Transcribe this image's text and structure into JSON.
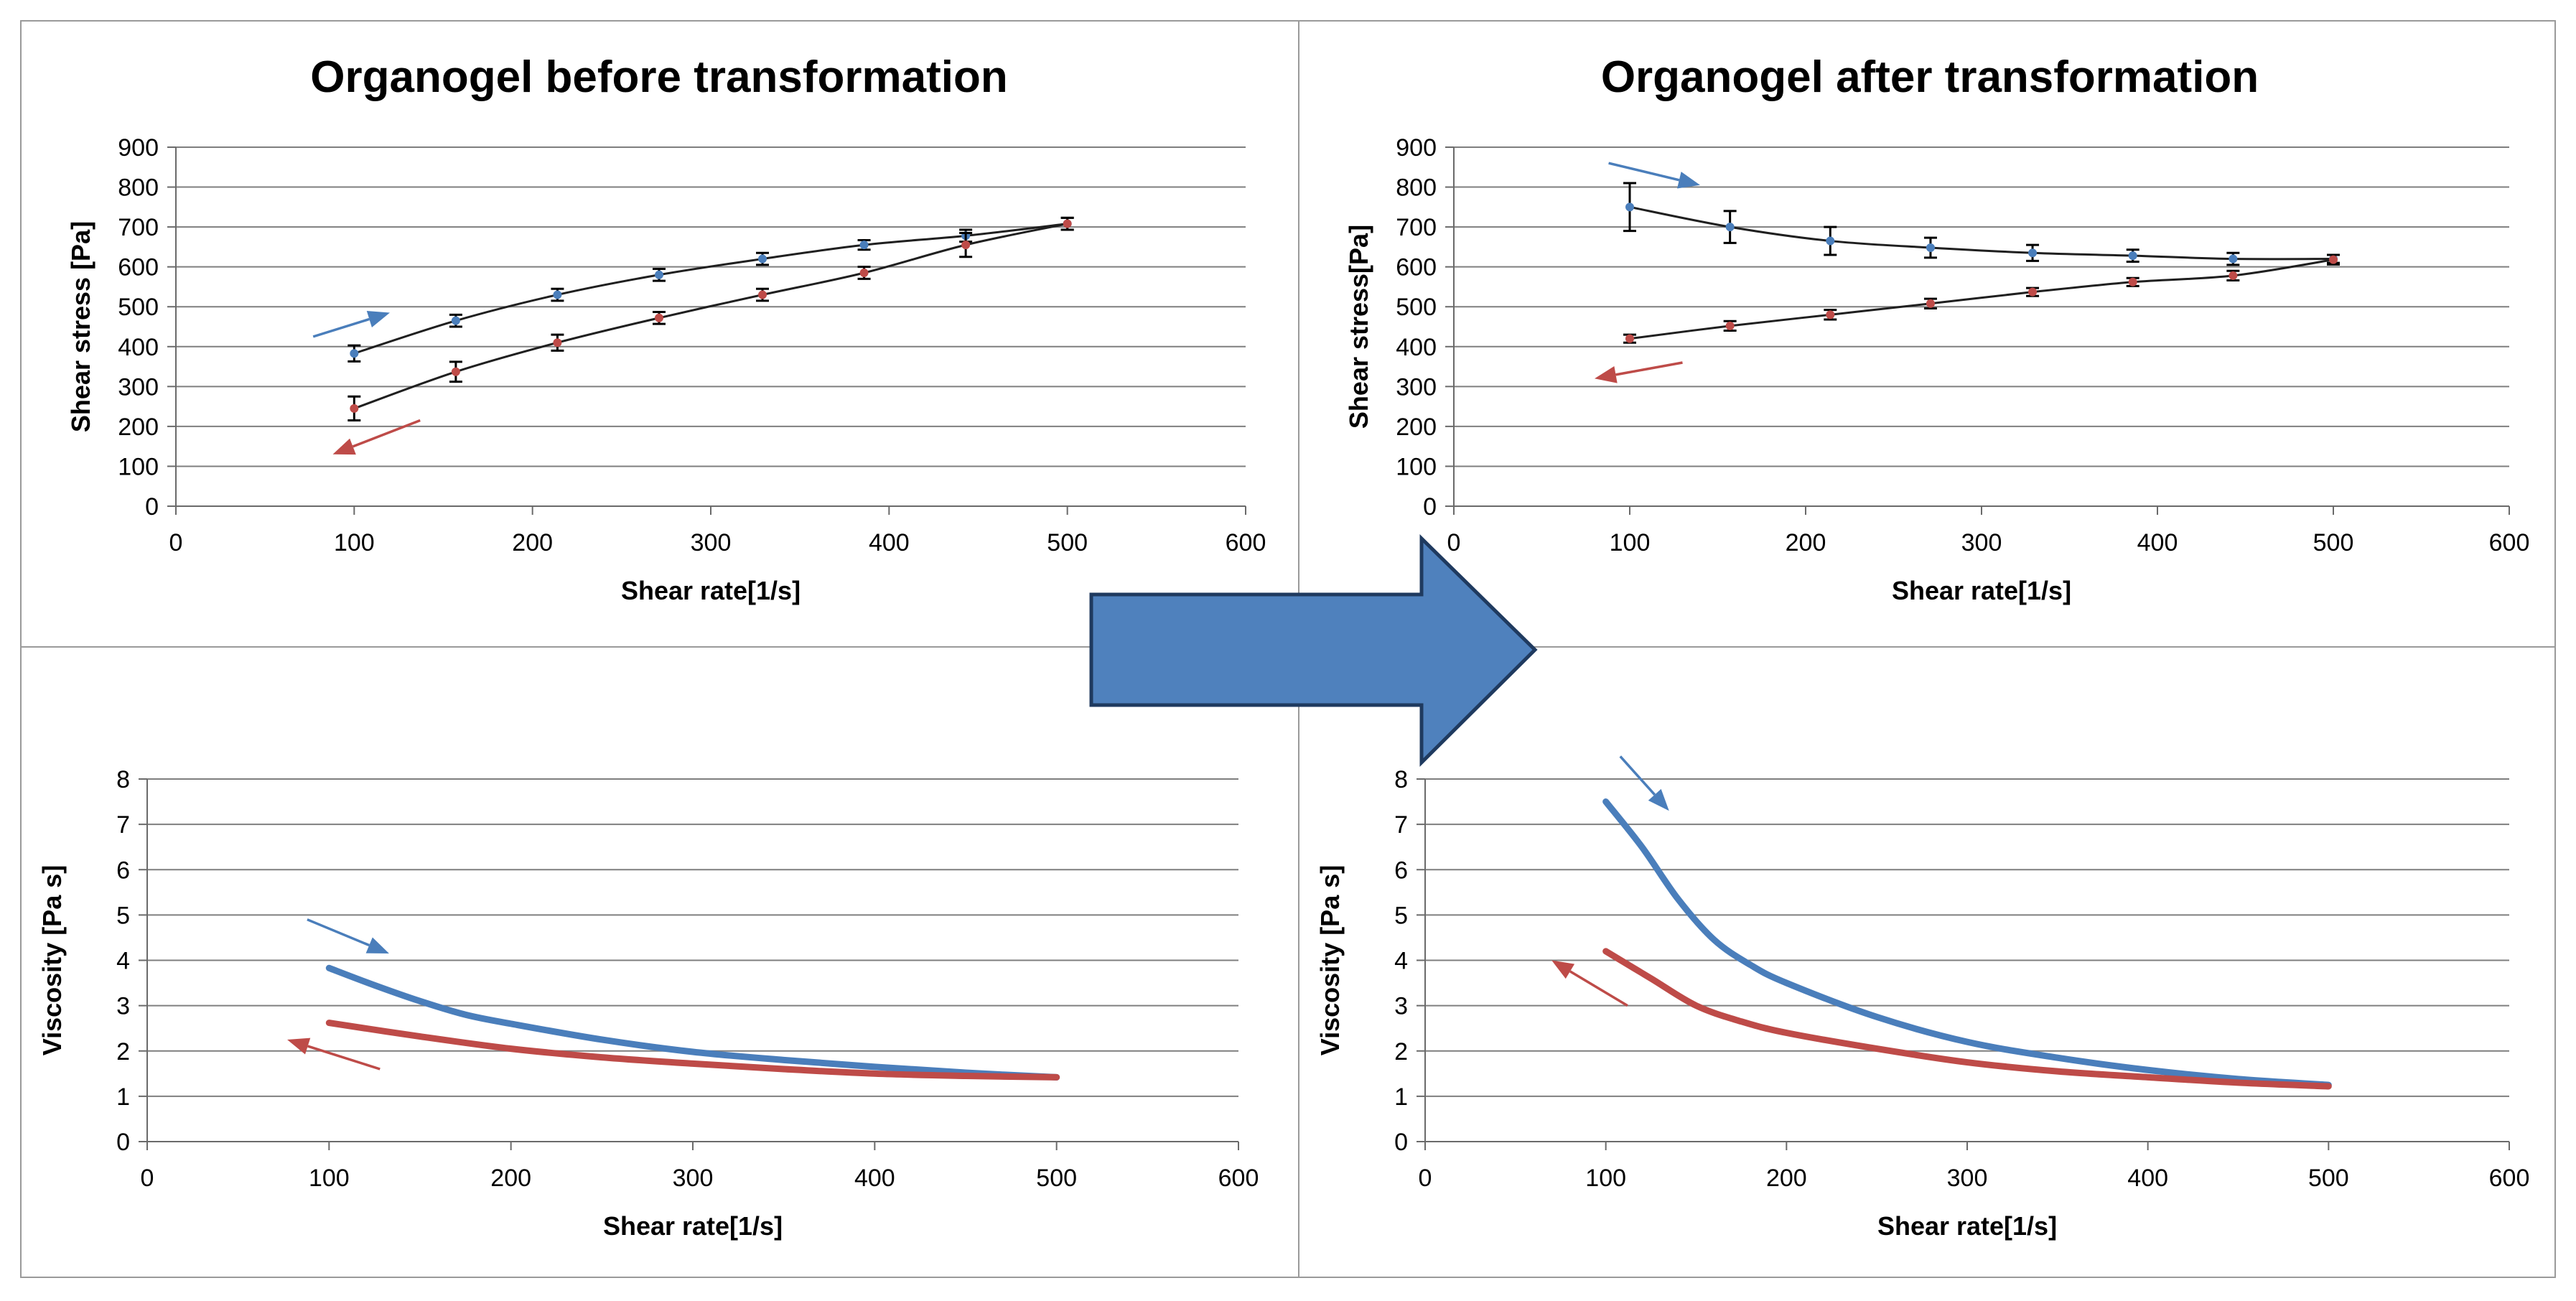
{
  "titles": {
    "before": "Organogel before transformation",
    "after": "Organogel after transformation"
  },
  "colors": {
    "up": "#4a7ebb",
    "down": "#be4b48",
    "fit": "#1f1f1f",
    "grid": "#7f7f7f",
    "arrow_fill": "#4f81bd",
    "arrow_stroke": "#1f3a5f"
  },
  "chart_data": [
    {
      "id": "stress-before",
      "type": "scatter",
      "title": "Organogel before transformation",
      "xlabel": "Shear rate[1/s]",
      "ylabel": "Shear stress [Pa]",
      "xlim": [
        0,
        600
      ],
      "ylim": [
        0,
        900
      ],
      "xticks": [
        0,
        100,
        200,
        300,
        400,
        500,
        600
      ],
      "yticks": [
        0,
        100,
        200,
        300,
        400,
        500,
        600,
        700,
        800,
        900
      ],
      "grid": true,
      "legend": "none",
      "series": [
        {
          "name": "increasing shear rate",
          "color": "up",
          "x": [
            100,
            157,
            214,
            271,
            329,
            386,
            443,
            500
          ],
          "y": [
            383,
            465,
            530,
            580,
            620,
            655,
            678,
            708
          ],
          "err": [
            20,
            15,
            15,
            15,
            15,
            12,
            15,
            15
          ]
        },
        {
          "name": "decreasing shear rate",
          "color": "down",
          "x": [
            100,
            157,
            214,
            271,
            329,
            386,
            443,
            500
          ],
          "y": [
            245,
            337,
            410,
            472,
            530,
            585,
            655,
            708
          ],
          "err": [
            30,
            25,
            20,
            15,
            15,
            15,
            30,
            15
          ]
        }
      ],
      "direction_arrows": [
        {
          "color": "up",
          "from": [
            77,
            425
          ],
          "to": [
            120,
            485
          ]
        },
        {
          "color": "down",
          "from": [
            137,
            215
          ],
          "to": [
            88,
            130
          ]
        }
      ]
    },
    {
      "id": "stress-after",
      "type": "scatter",
      "title": "Organogel after transformation",
      "xlabel": "Shear rate[1/s]",
      "ylabel": "Shear stress[Pa]",
      "xlim": [
        0,
        600
      ],
      "ylim": [
        0,
        900
      ],
      "xticks": [
        0,
        100,
        200,
        300,
        400,
        500,
        600
      ],
      "yticks": [
        0,
        100,
        200,
        300,
        400,
        500,
        600,
        700,
        800,
        900
      ],
      "grid": true,
      "legend": "none",
      "series": [
        {
          "name": "increasing shear rate",
          "color": "up",
          "x": [
            100,
            157,
            214,
            271,
            329,
            386,
            443,
            500
          ],
          "y": [
            750,
            700,
            665,
            648,
            635,
            628,
            620,
            620
          ],
          "err": [
            60,
            40,
            35,
            25,
            20,
            15,
            15,
            10
          ]
        },
        {
          "name": "decreasing shear rate",
          "color": "down",
          "x": [
            100,
            157,
            214,
            271,
            329,
            386,
            443,
            500
          ],
          "y": [
            420,
            452,
            480,
            508,
            537,
            562,
            578,
            618
          ],
          "err": [
            10,
            12,
            12,
            12,
            10,
            10,
            12,
            12
          ]
        }
      ],
      "direction_arrows": [
        {
          "color": "up",
          "from": [
            88,
            860
          ],
          "to": [
            140,
            805
          ]
        },
        {
          "color": "down",
          "from": [
            130,
            360
          ],
          "to": [
            80,
            320
          ]
        }
      ]
    },
    {
      "id": "viscosity-before",
      "type": "line",
      "xlabel": "Shear rate[1/s]",
      "ylabel": "Viscosity [Pa s]",
      "xlim": [
        0,
        600
      ],
      "ylim": [
        0,
        8
      ],
      "xticks": [
        0,
        100,
        200,
        300,
        400,
        500,
        600
      ],
      "yticks": [
        0,
        1,
        2,
        3,
        4,
        5,
        6,
        7,
        8
      ],
      "grid": true,
      "legend": "none",
      "series": [
        {
          "name": "increasing shear rate",
          "color": "up",
          "x": [
            100,
            125,
            150,
            175,
            200,
            250,
            300,
            350,
            400,
            450,
            500
          ],
          "y": [
            3.83,
            3.45,
            3.1,
            2.8,
            2.6,
            2.25,
            1.98,
            1.8,
            1.65,
            1.52,
            1.42
          ]
        },
        {
          "name": "decreasing shear rate",
          "color": "down",
          "x": [
            100,
            150,
            200,
            250,
            300,
            350,
            400,
            450,
            500
          ],
          "y": [
            2.62,
            2.32,
            2.05,
            1.86,
            1.72,
            1.6,
            1.5,
            1.45,
            1.42
          ]
        }
      ],
      "direction_arrows": [
        {
          "color": "up",
          "from": [
            88,
            4.9
          ],
          "to": [
            133,
            4.15
          ]
        },
        {
          "color": "down",
          "from": [
            128,
            1.6
          ],
          "to": [
            77,
            2.25
          ]
        }
      ]
    },
    {
      "id": "viscosity-after",
      "type": "line",
      "xlabel": "Shear rate[1/s]",
      "ylabel": "Viscosity [Pa s]",
      "xlim": [
        0,
        600
      ],
      "ylim": [
        0,
        8
      ],
      "xticks": [
        0,
        100,
        200,
        300,
        400,
        500,
        600
      ],
      "yticks": [
        0,
        1,
        2,
        3,
        4,
        5,
        6,
        7,
        8
      ],
      "grid": true,
      "legend": "none",
      "series": [
        {
          "name": "increasing shear rate",
          "color": "up",
          "x": [
            100,
            120,
            140,
            160,
            180,
            200,
            250,
            300,
            350,
            400,
            450,
            500
          ],
          "y": [
            7.5,
            6.5,
            5.35,
            4.45,
            3.9,
            3.5,
            2.75,
            2.2,
            1.85,
            1.58,
            1.38,
            1.25
          ]
        },
        {
          "name": "decreasing shear rate",
          "color": "down",
          "x": [
            100,
            125,
            150,
            175,
            200,
            250,
            300,
            350,
            400,
            450,
            500
          ],
          "y": [
            4.2,
            3.6,
            3.0,
            2.65,
            2.4,
            2.05,
            1.75,
            1.55,
            1.42,
            1.3,
            1.22
          ]
        }
      ],
      "direction_arrows": [
        {
          "color": "up",
          "from": [
            108,
            8.5
          ],
          "to": [
            135,
            7.3
          ]
        },
        {
          "color": "down",
          "from": [
            112,
            3.0
          ],
          "to": [
            70,
            4.0
          ]
        }
      ]
    }
  ]
}
